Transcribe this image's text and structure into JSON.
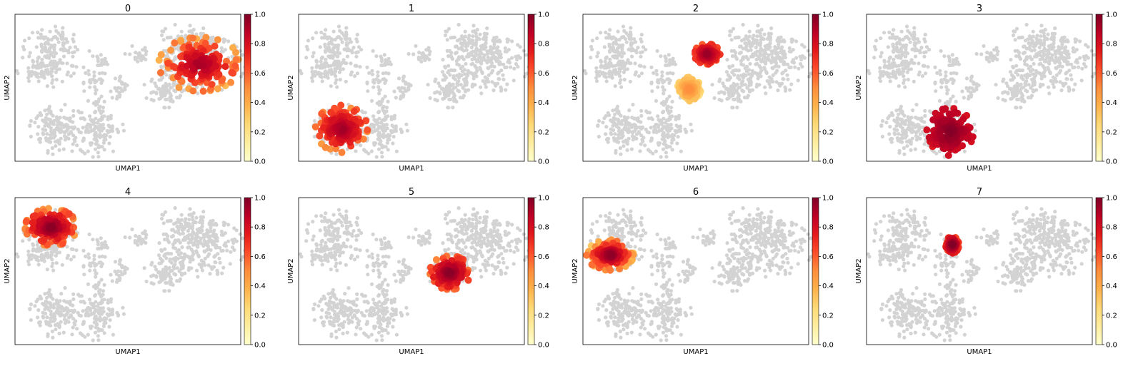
{
  "colors": {
    "background_cells": "#d3d3d3",
    "colormap": "YlOrRd",
    "colormap_stops": [
      "#ffffcc",
      "#ffeda0",
      "#fed976",
      "#feb24c",
      "#fd8d3c",
      "#fc4e2a",
      "#e31a1c",
      "#bd0026",
      "#800026"
    ]
  },
  "chart_data": [
    {
      "type": "scatter",
      "title": "0",
      "xlabel": "UMAP1",
      "ylabel": "UMAP2",
      "grid": false,
      "colorbar": {
        "range": [
          0,
          1
        ],
        "ticks": [
          "0.0",
          "0.2",
          "0.4",
          "0.6",
          "0.8",
          "1.0"
        ]
      },
      "highlight": [
        {
          "cluster": "right",
          "value_range": [
            0.35,
            0.95
          ]
        }
      ]
    },
    {
      "type": "scatter",
      "title": "1",
      "xlabel": "UMAP1",
      "ylabel": "UMAP2",
      "grid": false,
      "colorbar": {
        "range": [
          0,
          1
        ],
        "ticks": [
          "0.0",
          "0.2",
          "0.4",
          "0.6",
          "0.8",
          "1.0"
        ]
      },
      "highlight": [
        {
          "cluster": "bottom-left-west",
          "value_range": [
            0.45,
            0.95
          ]
        }
      ]
    },
    {
      "type": "scatter",
      "title": "2",
      "xlabel": "UMAP1",
      "ylabel": "UMAP2",
      "grid": false,
      "colorbar": {
        "range": [
          0,
          1
        ],
        "ticks": [
          "0.0",
          "0.2",
          "0.4",
          "0.6",
          "0.8",
          "1.0"
        ]
      },
      "highlight": [
        {
          "cluster": "bridge-upper",
          "value_range": [
            0.55,
            0.95
          ]
        },
        {
          "cluster": "bridge-lower",
          "value_range": [
            0.2,
            0.5
          ]
        }
      ]
    },
    {
      "type": "scatter",
      "title": "3",
      "xlabel": "UMAP1",
      "ylabel": "UMAP2",
      "grid": false,
      "colorbar": {
        "range": [
          0,
          1
        ],
        "ticks": [
          "0.0",
          "0.2",
          "0.4",
          "0.6",
          "0.8",
          "1.0"
        ]
      },
      "highlight": [
        {
          "cluster": "bottom-left-east",
          "value_range": [
            0.75,
            1.0
          ]
        }
      ]
    },
    {
      "type": "scatter",
      "title": "4",
      "xlabel": "UMAP1",
      "ylabel": "UMAP2",
      "grid": false,
      "colorbar": {
        "range": [
          0,
          1
        ],
        "ticks": [
          "0.0",
          "0.2",
          "0.4",
          "0.6",
          "0.8",
          "1.0"
        ]
      },
      "highlight": [
        {
          "cluster": "top-left-upper",
          "value_range": [
            0.45,
            1.0
          ]
        }
      ]
    },
    {
      "type": "scatter",
      "title": "5",
      "xlabel": "UMAP1",
      "ylabel": "UMAP2",
      "grid": false,
      "colorbar": {
        "range": [
          0,
          1
        ],
        "ticks": [
          "0.0",
          "0.2",
          "0.4",
          "0.6",
          "0.8",
          "1.0"
        ]
      },
      "highlight": [
        {
          "cluster": "right-bottom",
          "value_range": [
            0.5,
            1.0
          ]
        }
      ]
    },
    {
      "type": "scatter",
      "title": "6",
      "xlabel": "UMAP1",
      "ylabel": "UMAP2",
      "grid": false,
      "colorbar": {
        "range": [
          0,
          1
        ],
        "ticks": [
          "0.0",
          "0.2",
          "0.4",
          "0.6",
          "0.8",
          "1.0"
        ]
      },
      "highlight": [
        {
          "cluster": "top-left-lower",
          "value_range": [
            0.3,
            1.0
          ]
        }
      ]
    },
    {
      "type": "scatter",
      "title": "7",
      "xlabel": "UMAP1",
      "ylabel": "UMAP2",
      "grid": false,
      "colorbar": {
        "range": [
          0,
          1
        ],
        "ticks": [
          "0.0",
          "0.2",
          "0.4",
          "0.6",
          "0.8",
          "1.0"
        ]
      },
      "highlight": [
        {
          "cluster": "bridge-small",
          "value_range": [
            0.6,
            1.0
          ]
        }
      ]
    }
  ]
}
